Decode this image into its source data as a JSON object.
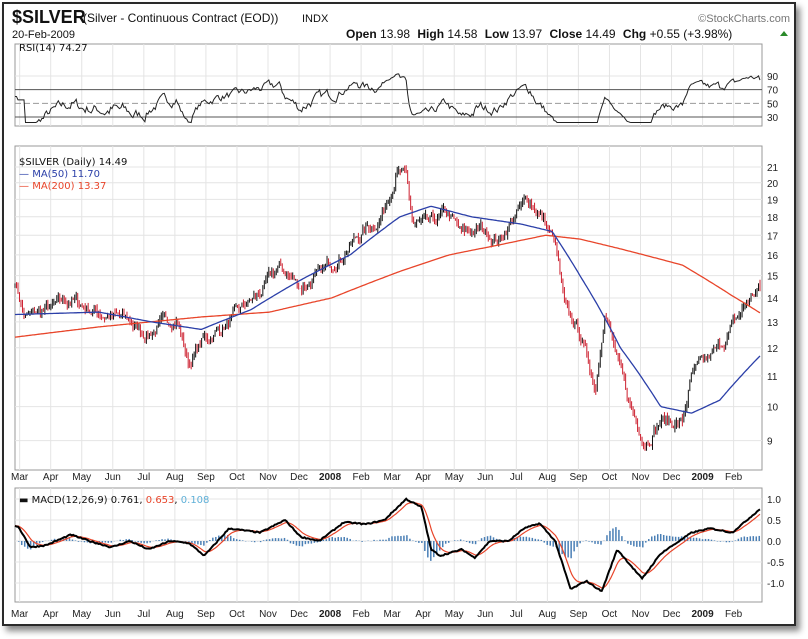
{
  "header": {
    "symbol": "$SILVER",
    "description": "(Silver - Continuous Contract (EOD))",
    "exchange": "INDX",
    "date": "20-Feb-2009",
    "brand": "©StockCharts.com",
    "open_label": "Open",
    "open": "13.98",
    "high_label": "High",
    "high": "14.58",
    "low_label": "Low",
    "low": "13.97",
    "close_label": "Close",
    "close": "14.49",
    "chg_label": "Chg",
    "chg": "+0.55 (+3.98%)"
  },
  "colors": {
    "ma50": "#2b3fa8",
    "ma200": "#e8452a",
    "up": "#111111",
    "down": "#cc1f2e",
    "hist": "#4a7fb5",
    "signal": "#e8452a",
    "rsi_fill": "#7aa37a"
  },
  "chart_data": [
    {
      "type": "line",
      "panel": "rsi",
      "legend": "RSI(14) 74.27",
      "ylim": [
        20,
        100
      ],
      "yticks": [
        "90",
        "70",
        "50",
        "30"
      ],
      "ytick_values": [
        90,
        70,
        50,
        30
      ]
    },
    {
      "type": "candlestick",
      "panel": "price",
      "legend": {
        "price": "$SILVER (Daily) 14.49",
        "ma50": "MA(50) 11.70",
        "ma200": "MA(200) 13.37"
      },
      "scale": "log",
      "ylim": [
        8.3,
        22
      ],
      "yticks": [
        "21",
        "20",
        "19",
        "18",
        "17",
        "16",
        "15",
        "14",
        "13",
        "12",
        "11",
        "10",
        "9"
      ],
      "ytick_values": [
        21,
        20,
        19,
        18,
        17,
        16,
        15,
        14,
        13,
        12,
        11,
        10,
        9
      ],
      "x_unit": "months since start of Mar 2007",
      "price_keypoints": [
        [
          0,
          14.8
        ],
        [
          0.3,
          13.2
        ],
        [
          1.1,
          13.5
        ],
        [
          1.8,
          13.9
        ],
        [
          2.7,
          13.4
        ],
        [
          3.7,
          13.0
        ],
        [
          4.2,
          12.5
        ],
        [
          5.2,
          13.2
        ],
        [
          5.6,
          11.4
        ],
        [
          6.0,
          12.2
        ],
        [
          6.9,
          13.0
        ],
        [
          7.9,
          14.2
        ],
        [
          8.5,
          15.4
        ],
        [
          9.2,
          14.5
        ],
        [
          9.8,
          15.0
        ],
        [
          10.5,
          16.0
        ],
        [
          11.1,
          17.0
        ],
        [
          11.8,
          18.0
        ],
        [
          12.3,
          20.8
        ],
        [
          12.6,
          20.3
        ],
        [
          12.8,
          17.6
        ],
        [
          13.4,
          17.5
        ],
        [
          13.9,
          18.2
        ],
        [
          14.4,
          17.0
        ],
        [
          15.0,
          17.3
        ],
        [
          15.6,
          16.8
        ],
        [
          16.3,
          18.5
        ],
        [
          16.6,
          19.0
        ],
        [
          17.1,
          17.6
        ],
        [
          17.4,
          16.5
        ],
        [
          17.7,
          13.5
        ],
        [
          18.2,
          12.5
        ],
        [
          18.7,
          10.6
        ],
        [
          19.0,
          13.6
        ],
        [
          19.4,
          11.5
        ],
        [
          19.8,
          10.0
        ],
        [
          20.3,
          9.0
        ],
        [
          20.8,
          9.6
        ],
        [
          21.5,
          9.5
        ],
        [
          21.8,
          11.0
        ],
        [
          22.3,
          11.5
        ],
        [
          22.7,
          12.0
        ],
        [
          23.2,
          13.0
        ],
        [
          23.7,
          14.0
        ],
        [
          24.0,
          14.49
        ]
      ],
      "ma50_keypoints": [
        [
          0,
          13.3
        ],
        [
          2.7,
          13.4
        ],
        [
          4.4,
          13.0
        ],
        [
          6.0,
          12.7
        ],
        [
          7.6,
          13.5
        ],
        [
          9.2,
          14.8
        ],
        [
          10.8,
          16.0
        ],
        [
          12.4,
          18.0
        ],
        [
          13.4,
          18.6
        ],
        [
          14.7,
          18.0
        ],
        [
          16.3,
          17.6
        ],
        [
          17.3,
          17.2
        ],
        [
          18.2,
          15.0
        ],
        [
          19.5,
          12.0
        ],
        [
          20.8,
          10.0
        ],
        [
          21.8,
          9.8
        ],
        [
          22.7,
          10.2
        ],
        [
          24.0,
          11.7
        ]
      ],
      "ma200_keypoints": [
        [
          0,
          12.4
        ],
        [
          2.7,
          12.8
        ],
        [
          6.0,
          13.2
        ],
        [
          8.2,
          13.4
        ],
        [
          10.2,
          14.0
        ],
        [
          12.4,
          15.2
        ],
        [
          14.0,
          16.0
        ],
        [
          15.6,
          16.5
        ],
        [
          17.1,
          17.0
        ],
        [
          18.2,
          16.8
        ],
        [
          19.5,
          16.3
        ],
        [
          21.5,
          15.5
        ],
        [
          23.1,
          14.1
        ],
        [
          24.0,
          13.37
        ]
      ]
    },
    {
      "type": "macd",
      "panel": "macd",
      "legend": {
        "label": "MACD(12,26,9)",
        "macd": "0.761",
        "signal": "0.653",
        "hist": "0.108"
      },
      "ylim": [
        -1.4,
        1.2
      ],
      "yticks": [
        "1.0",
        "0.5",
        "0.0",
        "-0.5",
        "-1.0"
      ],
      "ytick_values": [
        1.0,
        0.5,
        0.0,
        -0.5,
        -1.0
      ],
      "macd_keypoints": [
        [
          0.1,
          0.35
        ],
        [
          0.5,
          -0.15
        ],
        [
          1.0,
          -0.1
        ],
        [
          1.8,
          0.15
        ],
        [
          2.4,
          0.0
        ],
        [
          3.1,
          -0.15
        ],
        [
          3.7,
          0.0
        ],
        [
          4.3,
          -0.2
        ],
        [
          5.0,
          0.0
        ],
        [
          5.6,
          -0.05
        ],
        [
          6.1,
          -0.35
        ],
        [
          6.9,
          0.3
        ],
        [
          7.9,
          0.2
        ],
        [
          8.7,
          0.5
        ],
        [
          9.2,
          0.1
        ],
        [
          9.8,
          0.0
        ],
        [
          10.6,
          0.45
        ],
        [
          11.3,
          0.4
        ],
        [
          11.9,
          0.5
        ],
        [
          12.6,
          1.0
        ],
        [
          13.1,
          0.8
        ],
        [
          13.4,
          -0.2
        ],
        [
          13.7,
          -0.35
        ],
        [
          14.4,
          -0.2
        ],
        [
          14.8,
          -0.4
        ],
        [
          15.3,
          0.0
        ],
        [
          15.9,
          0.0
        ],
        [
          16.4,
          0.3
        ],
        [
          16.9,
          0.42
        ],
        [
          17.4,
          0.0
        ],
        [
          17.9,
          -1.15
        ],
        [
          18.4,
          -0.95
        ],
        [
          18.9,
          -1.2
        ],
        [
          19.4,
          -0.2
        ],
        [
          20.2,
          -0.9
        ],
        [
          20.8,
          -0.3
        ],
        [
          21.8,
          0.2
        ],
        [
          22.4,
          0.3
        ],
        [
          23.1,
          0.2
        ],
        [
          24.0,
          0.761
        ]
      ]
    }
  ],
  "xaxis": {
    "labels": [
      "Mar",
      "Apr",
      "May",
      "Jun",
      "Jul",
      "Aug",
      "Sep",
      "Oct",
      "Nov",
      "Dec",
      "2008",
      "Feb",
      "Mar",
      "Apr",
      "May",
      "Jun",
      "Jul",
      "Aug",
      "Sep",
      "Oct",
      "Nov",
      "Dec",
      "2009",
      "Feb"
    ]
  }
}
